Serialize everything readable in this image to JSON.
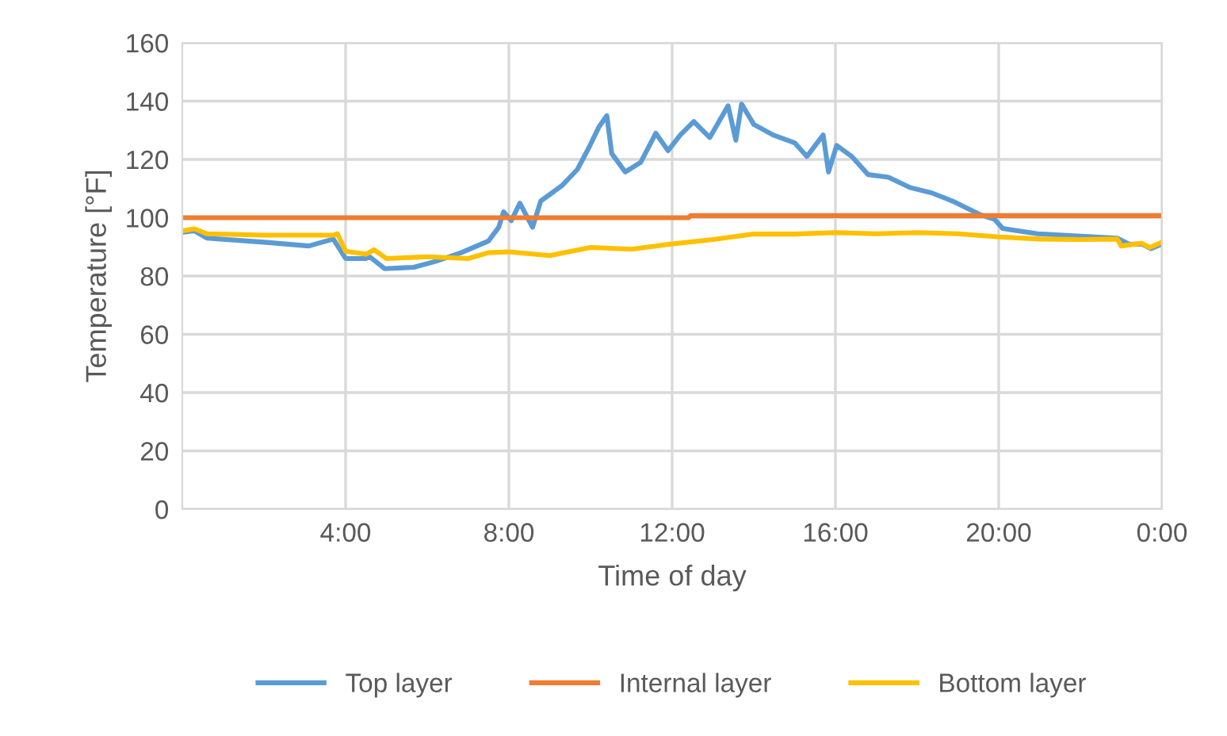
{
  "chart_data": {
    "type": "line",
    "xlabel": "Time of day",
    "ylabel": "Temperature [°F]",
    "xlim": [
      0,
      24
    ],
    "xticks": [
      {
        "value": 4,
        "label": "4:00"
      },
      {
        "value": 8,
        "label": "8:00"
      },
      {
        "value": 12,
        "label": "12:00"
      },
      {
        "value": 16,
        "label": "16:00"
      },
      {
        "value": 20,
        "label": "20:00"
      },
      {
        "value": 24,
        "label": "0:00"
      }
    ],
    "ylim": [
      0,
      160
    ],
    "yticks": [
      0,
      20,
      40,
      60,
      80,
      100,
      120,
      140,
      160
    ],
    "grid": true,
    "legend": "bottom",
    "marker": "none",
    "line_style": "solid",
    "series": [
      {
        "name": "Top layer",
        "color": "#5b9bd5",
        "x": [
          0,
          0.3,
          0.6,
          2.0,
          3.1,
          3.7,
          4.0,
          4.5,
          4.6,
          4.96,
          5.67,
          6.2,
          6.83,
          7.5,
          7.75,
          7.87,
          8.06,
          8.27,
          8.58,
          8.78,
          9.3,
          9.68,
          9.96,
          10.2,
          10.4,
          10.52,
          10.85,
          11.23,
          11.6,
          11.9,
          12.2,
          12.53,
          12.92,
          13.37,
          13.56,
          13.7,
          14.0,
          14.47,
          15.0,
          15.3,
          15.7,
          15.83,
          16.03,
          16.4,
          16.8,
          17.3,
          17.84,
          18.36,
          18.87,
          19.52,
          19.9,
          20.1,
          20.95,
          22.9,
          23.2,
          23.5,
          23.73,
          24
        ],
        "values": [
          95,
          95.5,
          93,
          91.6,
          90.3,
          92.7,
          86,
          86,
          86.5,
          82.5,
          83,
          85,
          88,
          92,
          96.7,
          102,
          99,
          105,
          96.7,
          105.7,
          111,
          116.6,
          124,
          131,
          135,
          122,
          115.7,
          119,
          129,
          123,
          128.4,
          133,
          127.5,
          138.4,
          126.6,
          139,
          132,
          128.4,
          125.7,
          121,
          128.4,
          115.7,
          124.8,
          121,
          114.8,
          113.9,
          110.3,
          108.5,
          105.7,
          101.2,
          99.4,
          96.3,
          94.5,
          93,
          90.9,
          91,
          89.4,
          91
        ]
      },
      {
        "name": "Internal layer",
        "color": "#ed7d31",
        "x": [
          0,
          12.4,
          12.45,
          24
        ],
        "values": [
          100,
          100,
          100.7,
          100.7
        ]
      },
      {
        "name": "Bottom layer",
        "color": "#ffc000",
        "x": [
          0,
          0.3,
          0.6,
          2.0,
          3.7,
          3.8,
          4.0,
          4.5,
          4.7,
          5.0,
          6.0,
          7.0,
          7.5,
          8.0,
          9.0,
          10.0,
          11.0,
          12.0,
          13.0,
          14.0,
          15.0,
          16.0,
          17.0,
          18.0,
          19.0,
          20.0,
          21.0,
          22.0,
          22.9,
          23.0,
          23.5,
          23.7,
          24
        ],
        "values": [
          95.5,
          96.2,
          94.5,
          94,
          94,
          94.5,
          88.5,
          87.5,
          89,
          86,
          86.6,
          86,
          88,
          88.3,
          87,
          89.8,
          89.2,
          91,
          92.5,
          94.4,
          94.4,
          94.9,
          94.5,
          94.9,
          94.5,
          93.4,
          92.7,
          92.5,
          92.7,
          90.3,
          91.2,
          89.8,
          91.6
        ]
      }
    ]
  }
}
